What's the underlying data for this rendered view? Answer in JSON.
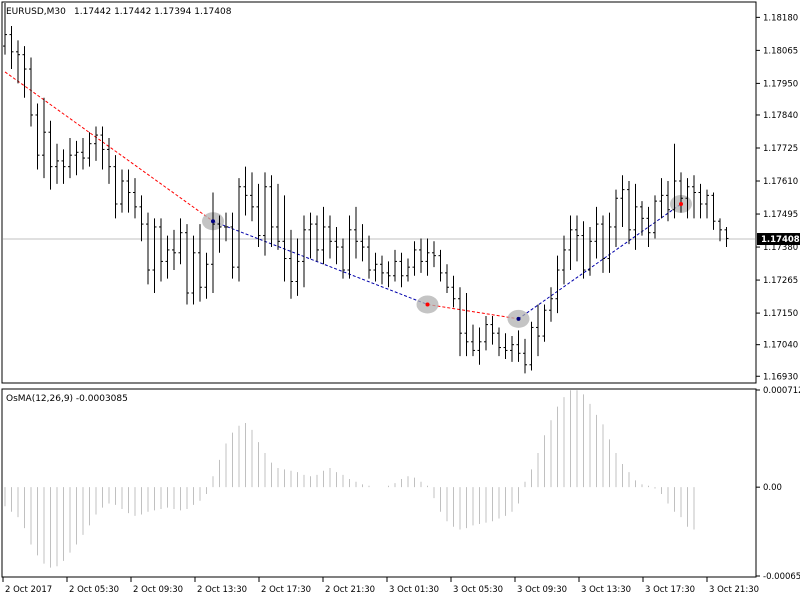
{
  "chart_data": [
    {
      "type": "candlestick",
      "symbol": "EURUSD,M30",
      "ohlc_label": "1.17442 1.17442 1.17394 1.17408",
      "ylim": [
        1.1691,
        1.1823
      ],
      "y_tick_labels": [
        "1.18180",
        "1.18065",
        "1.17950",
        "1.17840",
        "1.17725",
        "1.17610",
        "1.17495",
        "1.17380",
        "1.17265",
        "1.17150",
        "1.17040",
        "1.16930"
      ],
      "current_price": "1.17408",
      "bars": [
        [
          1.1808,
          1.1823,
          1.1805,
          1.1812
        ],
        [
          1.1812,
          1.1815,
          1.18,
          1.1806
        ],
        [
          1.1806,
          1.181,
          1.1795,
          1.1805
        ],
        [
          1.1805,
          1.1808,
          1.179,
          1.18
        ],
        [
          1.18,
          1.1804,
          1.178,
          1.1784
        ],
        [
          1.1784,
          1.1788,
          1.1765,
          1.177
        ],
        [
          1.177,
          1.179,
          1.1762,
          1.1778
        ],
        [
          1.1778,
          1.1782,
          1.1758,
          1.1766
        ],
        [
          1.1766,
          1.1774,
          1.176,
          1.1768
        ],
        [
          1.1768,
          1.1772,
          1.176,
          1.1766
        ],
        [
          1.1766,
          1.1776,
          1.1762,
          1.177
        ],
        [
          1.177,
          1.1775,
          1.1763,
          1.1771
        ],
        [
          1.1771,
          1.1776,
          1.1765,
          1.1769
        ],
        [
          1.1769,
          1.1778,
          1.1766,
          1.1774
        ],
        [
          1.1774,
          1.178,
          1.1768,
          1.1777
        ],
        [
          1.1777,
          1.178,
          1.1765,
          1.1772
        ],
        [
          1.1772,
          1.1776,
          1.176,
          1.1766
        ],
        [
          1.1766,
          1.177,
          1.1748,
          1.1753
        ],
        [
          1.1753,
          1.1765,
          1.175,
          1.1761
        ],
        [
          1.1761,
          1.1765,
          1.175,
          1.1757
        ],
        [
          1.1757,
          1.1762,
          1.1748,
          1.1752
        ],
        [
          1.1752,
          1.1756,
          1.174,
          1.1746
        ],
        [
          1.1746,
          1.175,
          1.1725,
          1.173
        ],
        [
          1.173,
          1.1748,
          1.1722,
          1.1745
        ],
        [
          1.1745,
          1.1748,
          1.1726,
          1.1733
        ],
        [
          1.1733,
          1.1742,
          1.1727,
          1.1737
        ],
        [
          1.1737,
          1.1744,
          1.173,
          1.1736
        ],
        [
          1.1736,
          1.1748,
          1.1732,
          1.1743
        ],
        [
          1.1743,
          1.1746,
          1.1718,
          1.1722
        ],
        [
          1.1722,
          1.1742,
          1.1718,
          1.1736
        ],
        [
          1.1736,
          1.1746,
          1.1719,
          1.1724
        ],
        [
          1.1724,
          1.1736,
          1.172,
          1.1732
        ],
        [
          1.1732,
          1.1757,
          1.1722,
          1.1746
        ],
        [
          1.1746,
          1.1749,
          1.1736,
          1.1745
        ],
        [
          1.1745,
          1.175,
          1.174,
          1.1745
        ],
        [
          1.1745,
          1.175,
          1.1727,
          1.1731
        ],
        [
          1.1731,
          1.1762,
          1.1726,
          1.1759
        ],
        [
          1.1759,
          1.1766,
          1.1749,
          1.1756
        ],
        [
          1.1756,
          1.1764,
          1.1747,
          1.1752
        ],
        [
          1.1752,
          1.176,
          1.1738,
          1.1742
        ],
        [
          1.1742,
          1.1764,
          1.1735,
          1.1759
        ],
        [
          1.1759,
          1.1763,
          1.1738,
          1.1745
        ],
        [
          1.1745,
          1.176,
          1.1737,
          1.174
        ],
        [
          1.174,
          1.1756,
          1.1726,
          1.1734
        ],
        [
          1.1734,
          1.1744,
          1.172,
          1.1726
        ],
        [
          1.1726,
          1.1741,
          1.1721,
          1.1733
        ],
        [
          1.1733,
          1.1749,
          1.1724,
          1.1744
        ],
        [
          1.1744,
          1.175,
          1.1734,
          1.1746
        ],
        [
          1.1746,
          1.1749,
          1.1733,
          1.1737
        ],
        [
          1.1737,
          1.1752,
          1.1732,
          1.1745
        ],
        [
          1.1745,
          1.1749,
          1.1734,
          1.174
        ],
        [
          1.174,
          1.1745,
          1.1732,
          1.1738
        ],
        [
          1.1738,
          1.1741,
          1.1727,
          1.173
        ],
        [
          1.173,
          1.1749,
          1.1727,
          1.1744
        ],
        [
          1.1744,
          1.1752,
          1.1734,
          1.174
        ],
        [
          1.174,
          1.1746,
          1.1733,
          1.1738
        ],
        [
          1.1738,
          1.1742,
          1.1727,
          1.173
        ],
        [
          1.173,
          1.1736,
          1.1726,
          1.1732
        ],
        [
          1.1732,
          1.1735,
          1.1725,
          1.1729
        ],
        [
          1.1729,
          1.1733,
          1.1724,
          1.1728
        ],
        [
          1.1728,
          1.1737,
          1.1726,
          1.1733
        ],
        [
          1.1733,
          1.1736,
          1.1724,
          1.1728
        ],
        [
          1.1728,
          1.1734,
          1.1726,
          1.1731
        ],
        [
          1.1731,
          1.174,
          1.1728,
          1.1737
        ],
        [
          1.1737,
          1.1741,
          1.1729,
          1.1733
        ],
        [
          1.1733,
          1.1741,
          1.1728,
          1.1736
        ],
        [
          1.1736,
          1.174,
          1.1731,
          1.1735
        ],
        [
          1.1735,
          1.1737,
          1.1726,
          1.1729
        ],
        [
          1.1729,
          1.1732,
          1.1722,
          1.1724
        ],
        [
          1.1724,
          1.1728,
          1.1717,
          1.172
        ],
        [
          1.172,
          1.1724,
          1.17,
          1.1708
        ],
        [
          1.1708,
          1.1722,
          1.17,
          1.1705
        ],
        [
          1.1705,
          1.1711,
          1.17,
          1.1702
        ],
        [
          1.1702,
          1.171,
          1.1697,
          1.1705
        ],
        [
          1.1705,
          1.1714,
          1.1702,
          1.1711
        ],
        [
          1.1711,
          1.1714,
          1.1704,
          1.1708
        ],
        [
          1.1708,
          1.171,
          1.17,
          1.1703
        ],
        [
          1.1703,
          1.1708,
          1.1699,
          1.1702
        ],
        [
          1.1702,
          1.1707,
          1.1698,
          1.1704
        ],
        [
          1.1704,
          1.1709,
          1.1698,
          1.1701
        ],
        [
          1.1701,
          1.1706,
          1.1694,
          1.1697
        ],
        [
          1.1697,
          1.1712,
          1.1695,
          1.171
        ],
        [
          1.171,
          1.1718,
          1.17,
          1.1707
        ],
        [
          1.1707,
          1.1718,
          1.1705,
          1.1716
        ],
        [
          1.1716,
          1.1724,
          1.1712,
          1.172
        ],
        [
          1.172,
          1.1735,
          1.1715,
          1.173
        ],
        [
          1.173,
          1.1742,
          1.1725,
          1.1737
        ],
        [
          1.1737,
          1.1749,
          1.173,
          1.1744
        ],
        [
          1.1744,
          1.1749,
          1.1733,
          1.1742
        ],
        [
          1.1742,
          1.1747,
          1.1727,
          1.173
        ],
        [
          1.173,
          1.1745,
          1.1728,
          1.174
        ],
        [
          1.174,
          1.1752,
          1.1734,
          1.1746
        ],
        [
          1.1746,
          1.1749,
          1.1729,
          1.1734
        ],
        [
          1.1734,
          1.175,
          1.1729,
          1.1745
        ],
        [
          1.1745,
          1.1758,
          1.1738,
          1.1755
        ],
        [
          1.1755,
          1.1763,
          1.1745,
          1.1758
        ],
        [
          1.1758,
          1.1761,
          1.1739,
          1.1744
        ],
        [
          1.1744,
          1.176,
          1.1737,
          1.1752
        ],
        [
          1.1752,
          1.1754,
          1.1742,
          1.1748
        ],
        [
          1.1748,
          1.1752,
          1.1738,
          1.1743
        ],
        [
          1.1743,
          1.1756,
          1.1741,
          1.1754
        ],
        [
          1.1754,
          1.1762,
          1.1748,
          1.1756
        ],
        [
          1.1756,
          1.1761,
          1.1747,
          1.1751
        ],
        [
          1.1751,
          1.1774,
          1.1748,
          1.1761
        ],
        [
          1.1761,
          1.1764,
          1.175,
          1.1755
        ],
        [
          1.1755,
          1.1762,
          1.1748,
          1.1759
        ],
        [
          1.1759,
          1.1763,
          1.1748,
          1.1757
        ],
        [
          1.1757,
          1.176,
          1.1748,
          1.1753
        ],
        [
          1.1753,
          1.1758,
          1.1748,
          1.1756
        ],
        [
          1.1756,
          1.1757,
          1.1744,
          1.1747
        ],
        [
          1.1747,
          1.1748,
          1.174,
          1.1744
        ],
        [
          1.1744,
          1.1745,
          1.1738,
          1.1741
        ]
      ],
      "fractals": [
        {
          "bar": 0,
          "price": 1.1799,
          "color": "#ff0000"
        },
        {
          "bar": 32,
          "price": 1.1747,
          "color": "#0000cc"
        },
        {
          "bar": 65,
          "price": 1.1718,
          "color": "#ff0000"
        },
        {
          "bar": 79,
          "price": 1.1713,
          "color": "#0000cc"
        },
        {
          "bar": 104,
          "price": 1.1753,
          "color": "#ff0000"
        }
      ],
      "highlighted_points": [
        {
          "bar": 32,
          "price": 1.1747,
          "color": "#000080"
        },
        {
          "bar": 65,
          "price": 1.1718,
          "color": "#ff0000"
        },
        {
          "bar": 79,
          "price": 1.1713,
          "color": "#000080"
        },
        {
          "bar": 104,
          "price": 1.1753,
          "color": "#ff0000"
        }
      ]
    },
    {
      "type": "histogram",
      "label": "OsMA(12,26,9) -0.0003085",
      "ylim": [
        -0.000651,
        0.000712
      ],
      "y_tick_labels": [
        "0.000712",
        "0.00",
        "-0.000651"
      ],
      "values": [
        -0.00014,
        -0.00018,
        -0.00022,
        -0.0003,
        -0.00042,
        -0.0005,
        -0.00056,
        -0.00059,
        -0.00058,
        -0.00054,
        -0.00048,
        -0.00042,
        -0.00035,
        -0.00028,
        -0.0002,
        -0.00015,
        -0.00012,
        -0.00013,
        -0.00016,
        -0.00019,
        -0.00021,
        -0.0002,
        -0.00018,
        -0.00017,
        -0.00016,
        -0.00015,
        -0.00016,
        -0.00017,
        -0.00016,
        -0.00013,
        -0.0001,
        -5e-05,
        8e-05,
        0.0002,
        0.00032,
        0.0004,
        0.00045,
        0.00047,
        0.00042,
        0.00033,
        0.00025,
        0.00018,
        0.00014,
        0.00013,
        0.00012,
        0.00011,
        9e-05,
        8e-05,
        9e-05,
        0.00012,
        0.00014,
        0.00011,
        9e-05,
        6e-05,
        4e-05,
        2e-05,
        1e-05,
        0.0,
        0.0,
        1e-05,
        3e-05,
        6e-05,
        8e-05,
        7e-05,
        4e-05,
        1e-05,
        -8e-05,
        -0.00018,
        -0.00025,
        -0.00029,
        -0.00031,
        -0.0003,
        -0.00028,
        -0.00027,
        -0.00026,
        -0.00025,
        -0.00023,
        -0.00021,
        -0.00018,
        -0.00012,
        4e-05,
        0.00013,
        0.00025,
        0.00038,
        0.00049,
        0.00059,
        0.00066,
        0.00071,
        0.00071,
        0.00068,
        0.00061,
        0.00053,
        0.00046,
        0.00035,
        0.00025,
        0.00017,
        0.00011,
        5e-05,
        2e-05,
        1e-05,
        -1e-05,
        -5e-05,
        -0.00012,
        -0.00018,
        -0.00022,
        -0.00029,
        -0.00031
      ]
    }
  ],
  "x_tick_labels": [
    "2 Oct 2017",
    "2 Oct 05:30",
    "2 Oct 09:30",
    "2 Oct 13:30",
    "2 Oct 17:30",
    "2 Oct 21:30",
    "3 Oct 01:30",
    "3 Oct 05:30",
    "3 Oct 09:30",
    "3 Oct 13:30",
    "3 Oct 17:30",
    "3 Oct 21:30"
  ],
  "colors": {
    "bars": "#000000",
    "grid": "#c0c0c0",
    "histogram": "#c0c0c0",
    "zigzag_down": "#ff0000",
    "zigzag_up": "#0000aa",
    "highlight": "#b0b0b0",
    "price_tag_bg": "#000000"
  }
}
